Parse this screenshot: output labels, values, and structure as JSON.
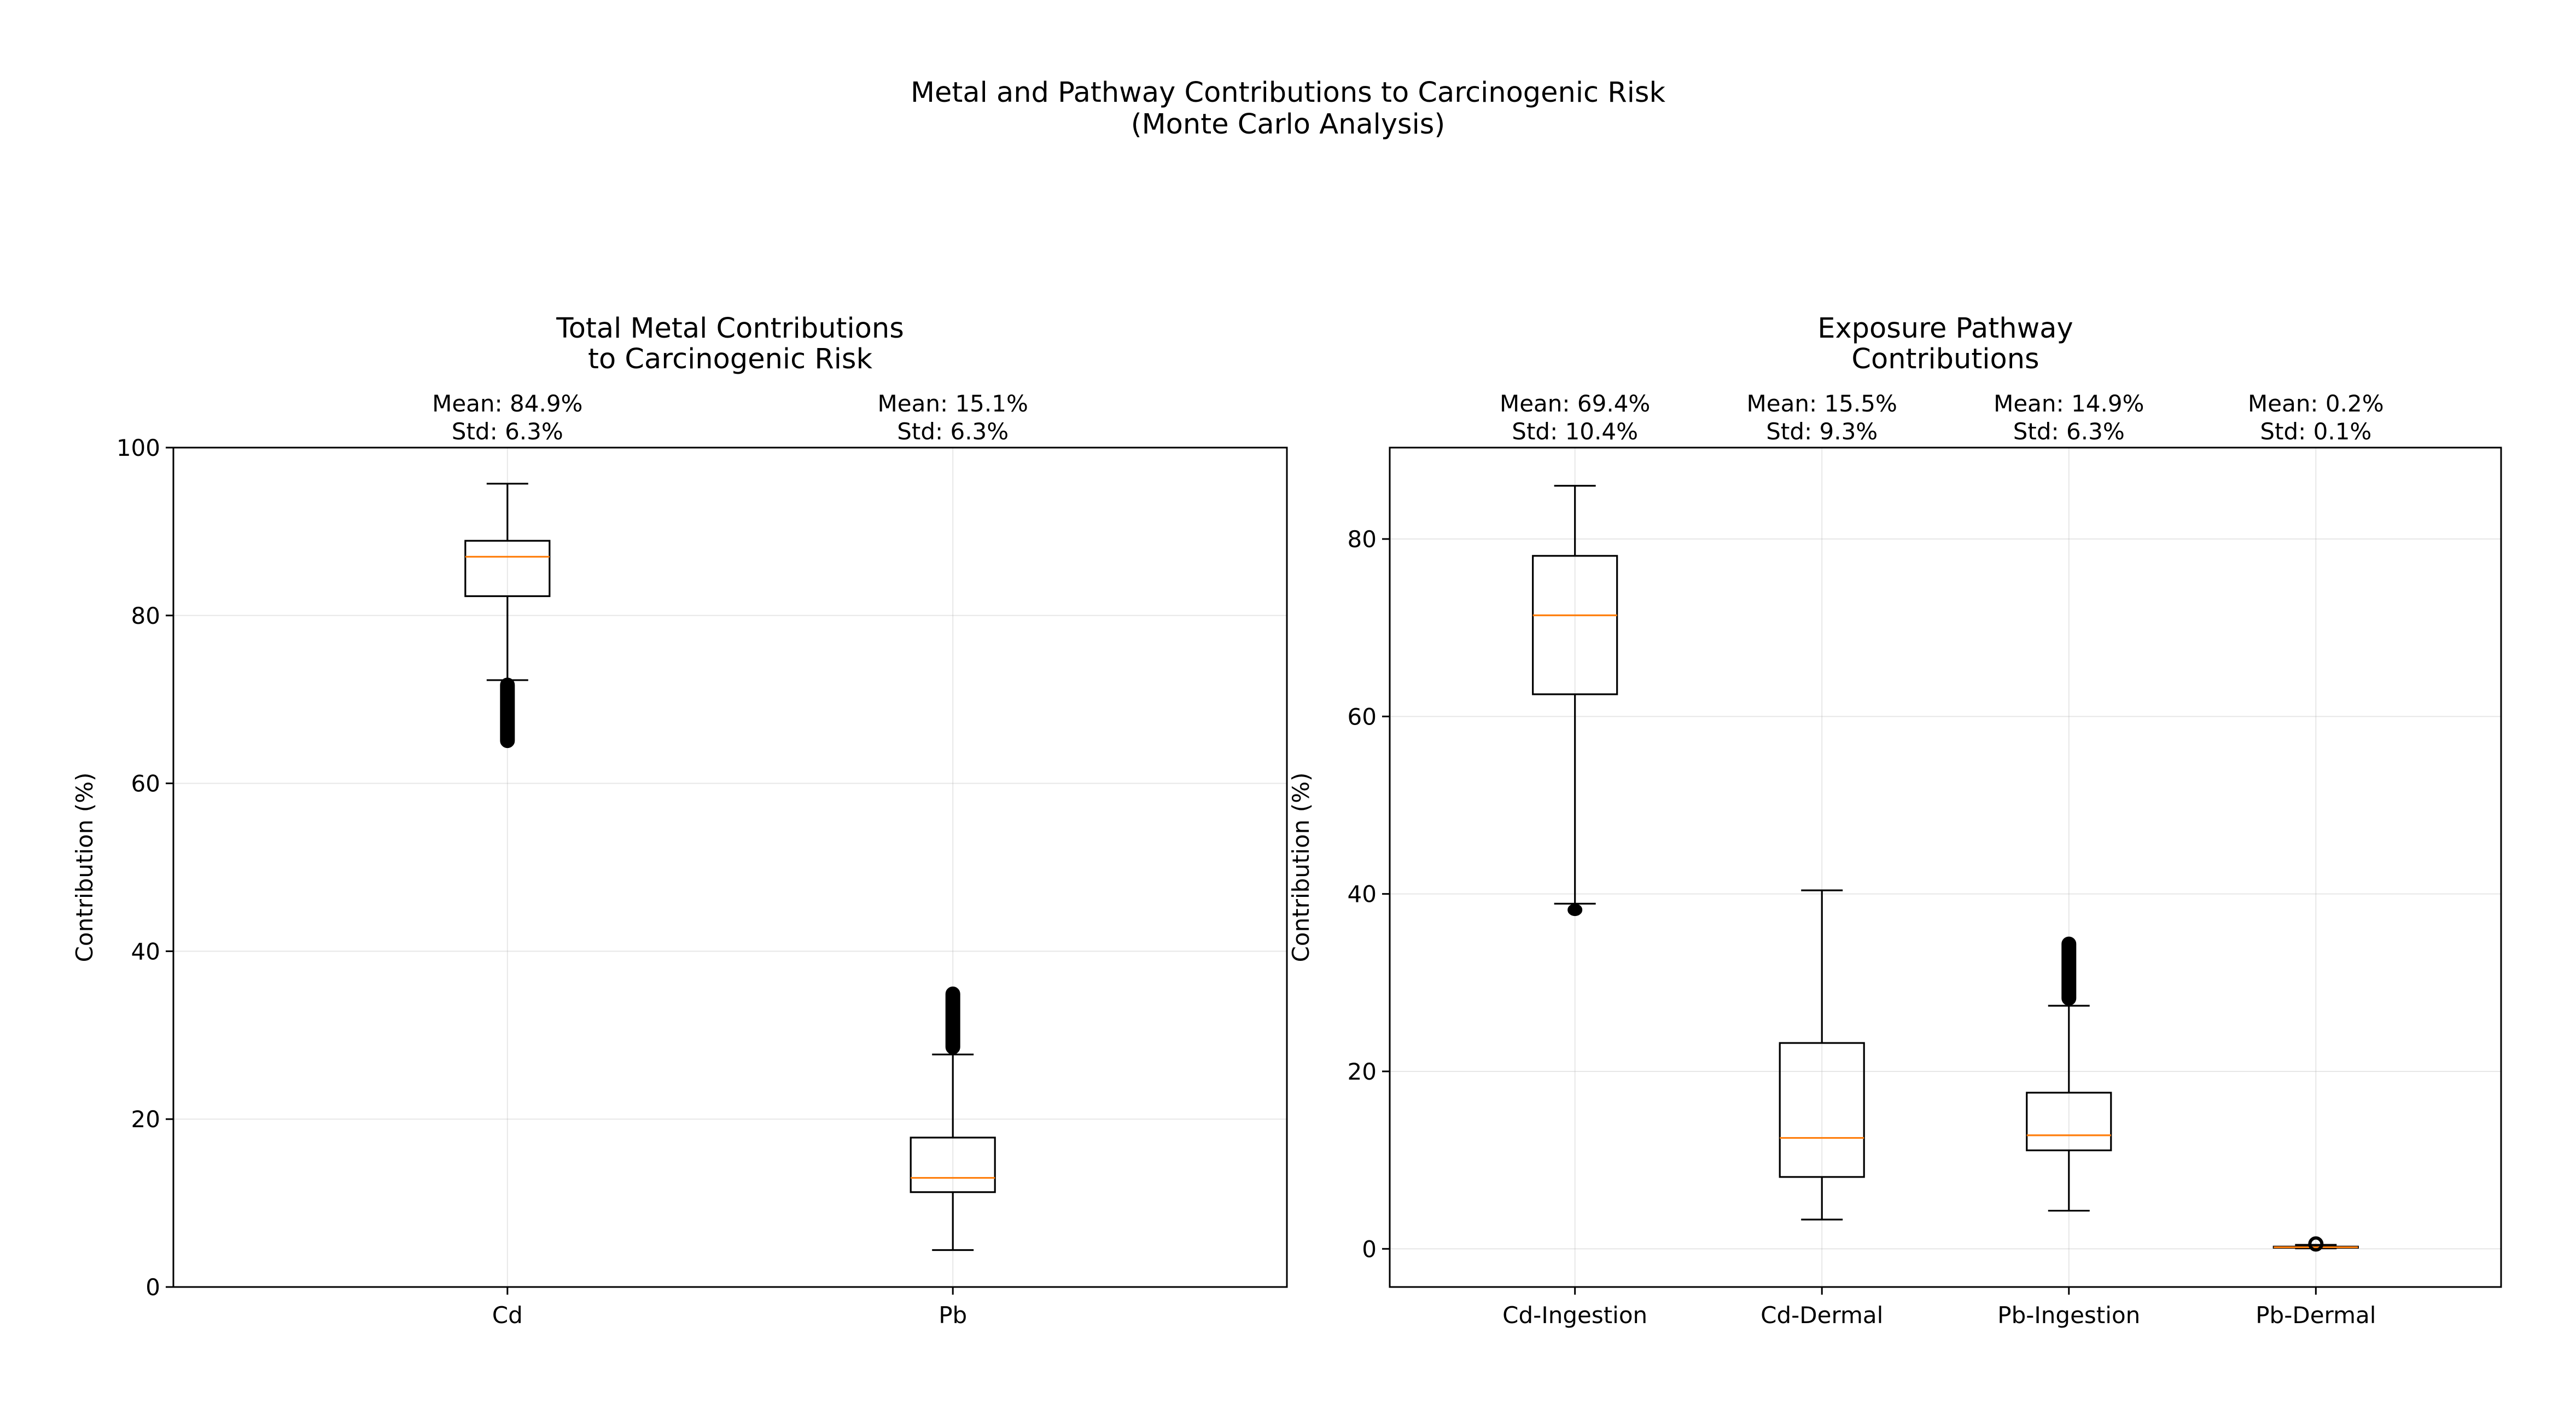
{
  "figure": {
    "suptitle_lines": [
      "Metal and Pathway Contributions to Carcinogenic Risk",
      "(Monte Carlo Analysis)"
    ]
  },
  "colors": {
    "median": "#ff7f0e",
    "box": "#000000",
    "flier": "#000000"
  },
  "chart_data": [
    {
      "type": "box",
      "title_lines": [
        "Total Metal Contributions",
        "to Carcinogenic Risk"
      ],
      "xlabel": "",
      "ylabel": "Contribution (%)",
      "ylim": [
        0,
        100
      ],
      "yticks": [
        0,
        20,
        40,
        60,
        80,
        100
      ],
      "grid": true,
      "categories": [
        "Cd",
        "Pb"
      ],
      "boxes": [
        {
          "name": "Cd",
          "whisker_low": 72.3,
          "q1": 82.3,
          "median": 87.0,
          "q3": 88.9,
          "whisker_high": 95.7,
          "fliers_low": [
            64.3,
            72.5
          ],
          "fliers_high": []
        },
        {
          "name": "Pb",
          "whisker_low": 4.4,
          "q1": 11.3,
          "median": 13.0,
          "q3": 17.8,
          "whisker_high": 27.7,
          "fliers_low": [],
          "fliers_high": [
            27.8,
            35.7
          ]
        }
      ],
      "annotations": [
        {
          "category": "Cd",
          "mean": "Mean: 84.9%",
          "std": "Std: 6.3%"
        },
        {
          "category": "Pb",
          "mean": "Mean: 15.1%",
          "std": "Std: 6.3%"
        }
      ]
    },
    {
      "type": "box",
      "title_lines": [
        "Exposure Pathway",
        "Contributions"
      ],
      "xlabel": "",
      "ylabel": "Contribution (%)",
      "ylim": [
        -4.3,
        90.3
      ],
      "yticks": [
        0,
        20,
        40,
        60,
        80
      ],
      "grid": true,
      "categories": [
        "Cd-Ingestion",
        "Cd-Dermal",
        "Pb-Ingestion",
        "Pb-Dermal"
      ],
      "boxes": [
        {
          "name": "Cd-Ingestion",
          "whisker_low": 38.9,
          "q1": 62.5,
          "median": 71.4,
          "q3": 78.1,
          "whisker_high": 86.0,
          "fliers_low": [
            37.6,
            38.8
          ],
          "fliers_high": []
        },
        {
          "name": "Cd-Dermal",
          "whisker_low": 3.3,
          "q1": 8.1,
          "median": 12.5,
          "q3": 23.2,
          "whisker_high": 40.4,
          "fliers_low": [],
          "fliers_high": []
        },
        {
          "name": "Pb-Ingestion",
          "whisker_low": 4.3,
          "q1": 11.1,
          "median": 12.8,
          "q3": 17.6,
          "whisker_high": 27.4,
          "fliers_low": [],
          "fliers_high": [
            27.5,
            35.1
          ]
        },
        {
          "name": "Pb-Dermal",
          "whisker_low": 0.05,
          "q1": 0.12,
          "median": 0.18,
          "q3": 0.25,
          "whisker_high": 0.45,
          "fliers_low": [],
          "fliers_high": [
            0.5,
            0.6
          ]
        }
      ],
      "annotations": [
        {
          "category": "Cd-Ingestion",
          "mean": "Mean: 69.4%",
          "std": "Std: 10.4%"
        },
        {
          "category": "Cd-Dermal",
          "mean": "Mean: 15.5%",
          "std": "Std: 9.3%"
        },
        {
          "category": "Pb-Ingestion",
          "mean": "Mean: 14.9%",
          "std": "Std: 6.3%"
        },
        {
          "category": "Pb-Dermal",
          "mean": "Mean: 0.2%",
          "std": "Std: 0.1%"
        }
      ]
    }
  ]
}
